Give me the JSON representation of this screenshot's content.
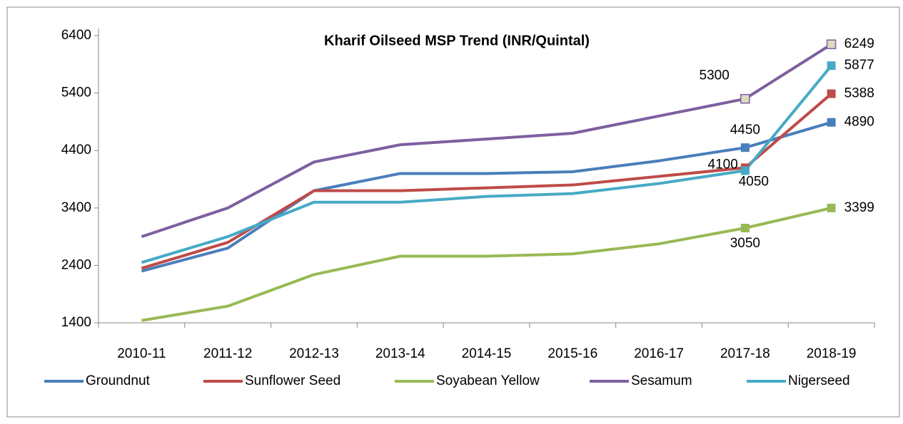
{
  "chart_data": {
    "type": "line",
    "title": "Kharif Oilseed MSP Trend (INR/Quintal)",
    "categories": [
      "2010-11",
      "2011-12",
      "2012-13",
      "2013-14",
      "2014-15",
      "2015-16",
      "2016-17",
      "2017-18",
      "2018-19"
    ],
    "series": [
      {
        "name": "Groundnut",
        "color": "#4a7ebb",
        "values": [
          2300,
          2700,
          3700,
          4000,
          4000,
          4030,
          4220,
          4450,
          4890
        ]
      },
      {
        "name": "Sunflower Seed",
        "color": "#be4b48",
        "values": [
          2350,
          2800,
          3700,
          3700,
          3750,
          3800,
          3950,
          4100,
          5388
        ]
      },
      {
        "name": "Soyabean Yellow",
        "color": "#98b954",
        "values": [
          1440,
          1690,
          2240,
          2560,
          2560,
          2600,
          2775,
          3050,
          3399
        ]
      },
      {
        "name": "Sesamum",
        "color": "#7d60a0",
        "marker_fill": "#dcdcc0",
        "values": [
          2900,
          3400,
          4200,
          4500,
          4600,
          4700,
          5000,
          5300,
          6249
        ]
      },
      {
        "name": "Nigerseed",
        "color": "#46aac5",
        "values": [
          2450,
          2900,
          3500,
          3500,
          3600,
          3650,
          3825,
          4050,
          5877
        ]
      }
    ],
    "labeled_points": [
      7,
      8
    ],
    "ylim": [
      1400,
      6400
    ],
    "yticks": [
      1400,
      2400,
      3400,
      4400,
      5400,
      6400
    ],
    "grid": false,
    "legend": "bottom"
  }
}
